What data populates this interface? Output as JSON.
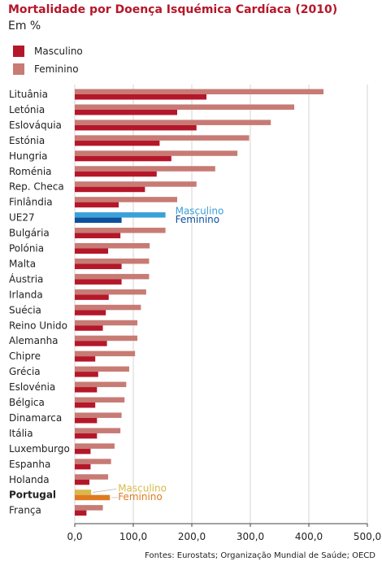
{
  "header": {
    "title": "Mortalidade por Doença Isquémica Cardíaca (2010)",
    "subtitle": "Em %"
  },
  "legend": [
    {
      "label": "Masculino",
      "color": "#b5172a"
    },
    {
      "label": "Feminino",
      "color": "#c77b74"
    }
  ],
  "source": "Fontes: Eurostats; Organização Mundial de Saúde; OECD",
  "chart_data": {
    "type": "bar",
    "orientation": "horizontal",
    "title": "Mortalidade por Doença Isquémica Cardíaca (2010)",
    "subtitle": "Em %",
    "xlim": [
      0,
      500
    ],
    "x_ticks": [
      "0,0",
      "100,0",
      "200,0",
      "300,0",
      "400,0",
      "500,0"
    ],
    "grid": "vertical",
    "legend_position": "top-left",
    "categories": [
      "Lituânia",
      "Letónia",
      "Eslováquia",
      "Estónia",
      "Hungria",
      "Roménia",
      "Rep. Checa",
      "Finlândia",
      "UE27",
      "Bulgária",
      "Polónia",
      "Malta",
      "Áustria",
      "Irlanda",
      "Suécia",
      "Reino Unido",
      "Alemanha",
      "Chipre",
      "Grécia",
      "Eslovénia",
      "Bélgica",
      "Dinamarca",
      "Itália",
      "Luxemburgo",
      "Espanha",
      "Holanda",
      "Portugal",
      "França"
    ],
    "series": [
      {
        "name": "Feminino",
        "color": "#c77b74",
        "values": [
          425,
          375,
          335,
          298,
          278,
          240,
          208,
          175,
          155,
          155,
          128,
          127,
          127,
          122,
          113,
          107,
          107,
          103,
          93,
          88,
          85,
          80,
          78,
          68,
          62,
          57,
          28,
          48
        ]
      },
      {
        "name": "Masculino",
        "color": "#b5172a",
        "values": [
          225,
          175,
          208,
          145,
          165,
          140,
          120,
          75,
          80,
          78,
          57,
          80,
          80,
          58,
          53,
          48,
          55,
          35,
          40,
          38,
          35,
          38,
          38,
          27,
          27,
          25,
          60,
          20
        ]
      }
    ],
    "highlights": [
      {
        "category": "UE27",
        "bold": false,
        "colors": {
          "Feminino": "#3aa0d8",
          "Masculino": "#0d4f9c"
        },
        "labels": [
          {
            "text": "Masculino",
            "color": "#3aa0d8"
          },
          {
            "text": "Feminino",
            "color": "#0d4f9c"
          }
        ]
      },
      {
        "category": "Portugal",
        "bold": true,
        "colors": {
          "Feminino": "#d9b84a",
          "Masculino": "#e07a20"
        },
        "labels": [
          {
            "text": "Masculino",
            "color": "#d9b84a"
          },
          {
            "text": "Feminino",
            "color": "#e07a20"
          }
        ]
      }
    ]
  }
}
